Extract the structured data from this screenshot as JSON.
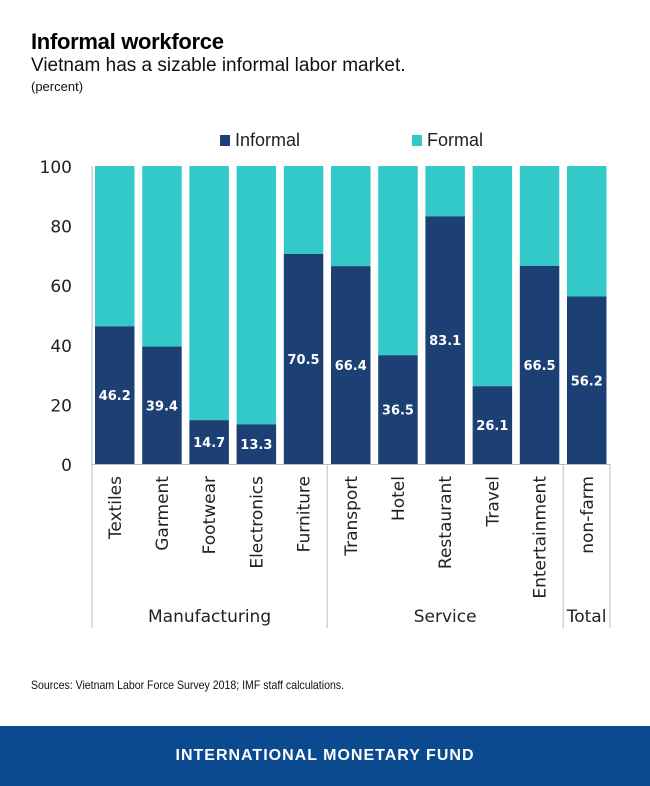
{
  "header": {
    "title": "Informal workforce",
    "subtitle": "Vietnam has a sizable informal labor market.",
    "units": "(percent)"
  },
  "colors": {
    "informal": "#1c3f74",
    "formal": "#33c9c9",
    "axis": "#bdbdbd",
    "footer": "#0c4a8f"
  },
  "chart_data": {
    "type": "bar",
    "stacked": true,
    "title": "Informal workforce",
    "subtitle": "Vietnam has a sizable informal labor market.",
    "ylabel": "(percent)",
    "xlabel": "",
    "ylim": [
      0,
      100
    ],
    "yticks": [
      0,
      20,
      40,
      60,
      80,
      100
    ],
    "grid": false,
    "legend_position": "top-center",
    "categories": [
      "Textiles",
      "Garment",
      "Footwear",
      "Electronics",
      "Furniture",
      "Transport",
      "Hotel",
      "Restaurant",
      "Travel",
      "Entertainment",
      "non-farm"
    ],
    "groups": [
      {
        "label": "Manufacturing",
        "categories": [
          "Textiles",
          "Garment",
          "Footwear",
          "Electronics",
          "Furniture"
        ]
      },
      {
        "label": "Service",
        "categories": [
          "Transport",
          "Hotel",
          "Restaurant",
          "Travel",
          "Entertainment"
        ]
      },
      {
        "label": "Total",
        "categories": [
          "non-farm"
        ]
      }
    ],
    "series": [
      {
        "name": "Informal",
        "values": [
          46.2,
          39.4,
          14.7,
          13.3,
          70.5,
          66.4,
          36.5,
          83.1,
          26.1,
          66.5,
          56.2
        ]
      },
      {
        "name": "Formal",
        "values": [
          53.8,
          60.6,
          85.3,
          86.7,
          29.5,
          33.6,
          63.5,
          16.9,
          73.9,
          33.5,
          43.8
        ]
      }
    ],
    "data_labels": [
      "46.2",
      "39.4",
      "14.7",
      "13.3",
      "70.5",
      "66.4",
      "36.5",
      "83.1",
      "26.1",
      "66.5",
      "56.2"
    ]
  },
  "source": "Sources: Vietnam Labor Force Survey 2018; IMF staff calculations.",
  "footer": {
    "label": "INTERNATIONAL MONETARY FUND"
  }
}
